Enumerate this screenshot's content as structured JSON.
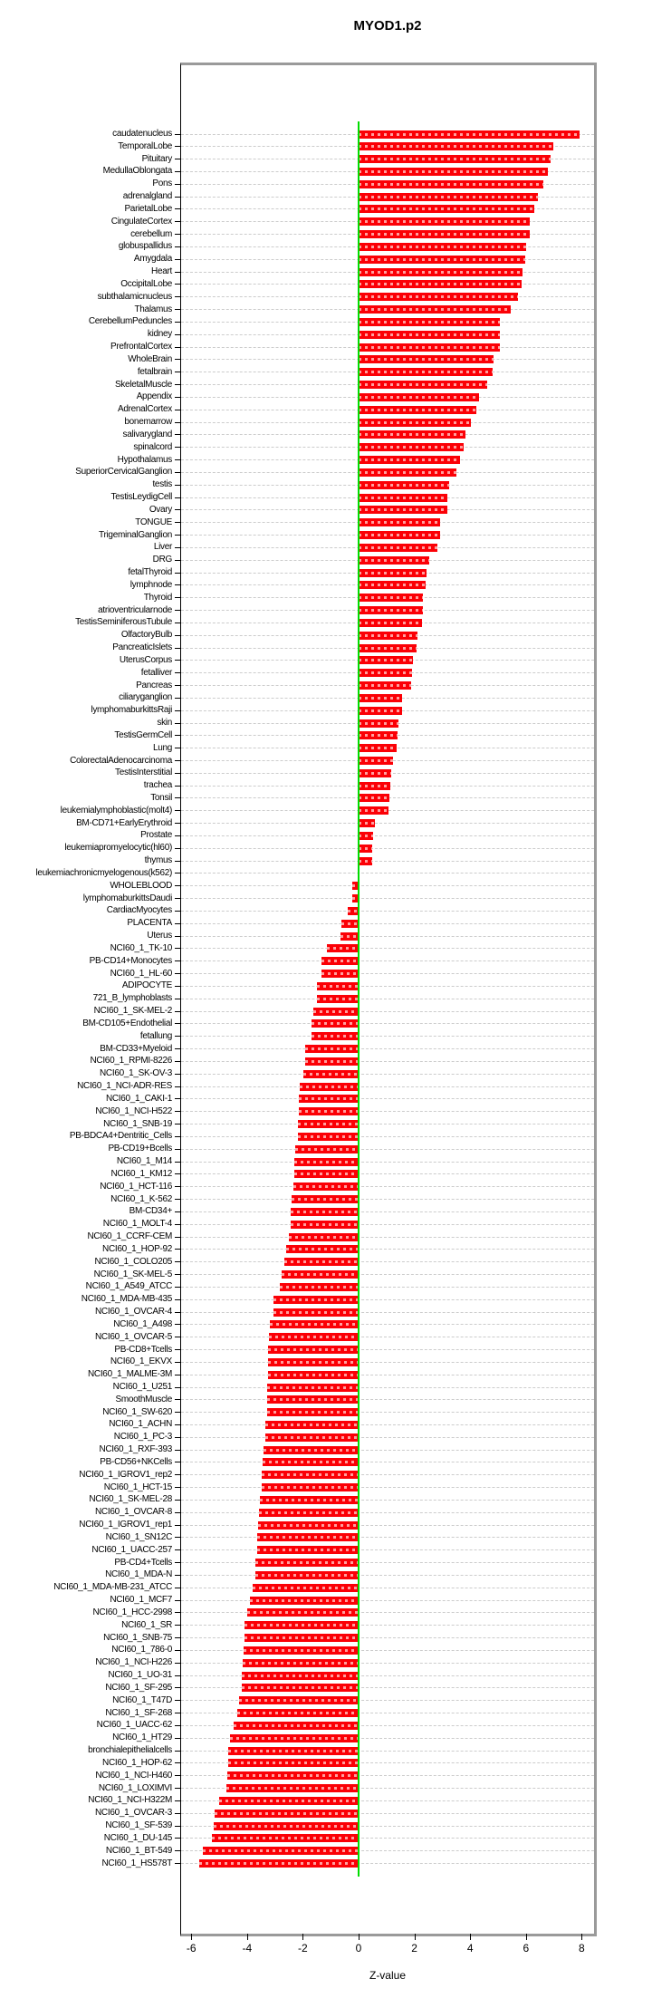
{
  "title": "MYOD1.p2",
  "x_axis": {
    "label": "Z-value",
    "ticks": [
      -6,
      -4,
      -2,
      0,
      2,
      4,
      6,
      8
    ]
  },
  "chart_data": {
    "type": "bar",
    "orientation": "horizontal",
    "title": "MYOD1.p2",
    "xlabel": "Z-value",
    "xlim": [
      -6.4,
      8.4
    ],
    "x_ticks": [
      -6,
      -4,
      -2,
      0,
      2,
      4,
      6,
      8
    ],
    "grid": "dashed-horizontal-per-category",
    "legend": "none",
    "bar_color": "#fb0006",
    "zero_line_color": "#00dd00",
    "categories": [
      "caudatenucleus",
      "TemporalLobe",
      "Pituitary",
      "MedullaOblongata",
      "Pons",
      "adrenalgland",
      "ParietalLobe",
      "CingulateCortex",
      "cerebellum",
      "globuspallidus",
      "Amygdala",
      "Heart",
      "OccipitalLobe",
      "subthalamicnucleus",
      "Thalamus",
      "CerebellumPeduncles",
      "kidney",
      "PrefrontalCortex",
      "WholeBrain",
      "fetalbrain",
      "SkeletalMuscle",
      "Appendix",
      "AdrenalCortex",
      "bonemarrow",
      "salivarygland",
      "spinalcord",
      "Hypothalamus",
      "SuperiorCervicalGanglion",
      "testis",
      "TestisLeydigCell",
      "Ovary",
      "TONGUE",
      "TrigeminalGanglion",
      "Liver",
      "DRG",
      "fetalThyroid",
      "lymphnode",
      "Thyroid",
      "atrioventricularnode",
      "TestisSeminiferousTubule",
      "OlfactoryBulb",
      "PancreaticIslets",
      "UterusCorpus",
      "fetalliver",
      "Pancreas",
      "ciliaryganglion",
      "lymphomaburkittsRaji",
      "skin",
      "TestisGermCell",
      "Lung",
      "ColorectalAdenocarcinoma",
      "TestisInterstitial",
      "trachea",
      "Tonsil",
      "leukemialymphoblastic(molt4)",
      "BM-CD71+EarlyErythroid",
      "Prostate",
      "leukemiapromyelocytic(hl60)",
      "thymus",
      "leukemiachronicmyelogenous(k562)",
      "WHOLEBLOOD",
      "lymphomaburkittsDaudi",
      "CardiacMyocytes",
      "PLACENTA",
      "Uterus",
      "NCI60_1_TK-10",
      "PB-CD14+Monocytes",
      "NCI60_1_HL-60",
      "ADIPOCYTE",
      "721_B_lymphoblasts",
      "NCI60_1_SK-MEL-2",
      "BM-CD105+Endothelial",
      "fetallung",
      "BM-CD33+Myeloid",
      "NCI60_1_RPMI-8226",
      "NCI60_1_SK-OV-3",
      "NCI60_1_NCI-ADR-RES",
      "NCI60_1_CAKI-1",
      "NCI60_1_NCI-H522",
      "NCI60_1_SNB-19",
      "PB-BDCA4+Dentritic_Cells",
      "PB-CD19+Bcells",
      "NCI60_1_M14",
      "NCI60_1_KM12",
      "NCI60_1_HCT-116",
      "NCI60_1_K-562",
      "BM-CD34+",
      "NCI60_1_MOLT-4",
      "NCI60_1_CCRF-CEM",
      "NCI60_1_HOP-92",
      "NCI60_1_COLO205",
      "NCI60_1_SK-MEL-5",
      "NCI60_1_A549_ATCC",
      "NCI60_1_MDA-MB-435",
      "NCI60_1_OVCAR-4",
      "NCI60_1_A498",
      "NCI60_1_OVCAR-5",
      "PB-CD8+Tcells",
      "NCI60_1_EKVX",
      "NCI60_1_MALME-3M",
      "NCI60_1_U251",
      "SmoothMuscle",
      "NCI60_1_SW-620",
      "NCI60_1_ACHN",
      "NCI60_1_PC-3",
      "NCI60_1_RXF-393",
      "PB-CD56+NKCells",
      "NCI60_1_IGROV1_rep2",
      "NCI60_1_HCT-15",
      "NCI60_1_SK-MEL-28",
      "NCI60_1_OVCAR-8",
      "NCI60_1_IGROV1_rep1",
      "NCI60_1_SN12C",
      "NCI60_1_UACC-257",
      "PB-CD4+Tcells",
      "NCI60_1_MDA-N",
      "NCI60_1_MDA-MB-231_ATCC",
      "NCI60_1_MCF7",
      "NCI60_1_HCC-2998",
      "NCI60_1_SR",
      "NCI60_1_SNB-75",
      "NCI60_1_786-0",
      "NCI60_1_NCI-H226",
      "NCI60_1_UO-31",
      "NCI60_1_SF-295",
      "NCI60_1_T47D",
      "NCI60_1_SF-268",
      "NCI60_1_UACC-62",
      "NCI60_1_HT29",
      "bronchialepithelialcells",
      "NCI60_1_HOP-62",
      "NCI60_1_NCI-H460",
      "NCI60_1_LOXIMVI",
      "NCI60_1_NCI-H322M",
      "NCI60_1_OVCAR-3",
      "NCI60_1_SF-539",
      "NCI60_1_DU-145",
      "NCI60_1_BT-549",
      "NCI60_1_HS578T"
    ],
    "values": [
      7.92,
      6.99,
      6.88,
      6.79,
      6.62,
      6.44,
      6.31,
      6.15,
      6.14,
      6.0,
      5.99,
      5.88,
      5.85,
      5.7,
      5.46,
      5.08,
      5.06,
      5.05,
      4.83,
      4.81,
      4.61,
      4.31,
      4.22,
      4.04,
      3.83,
      3.75,
      3.65,
      3.51,
      3.24,
      3.19,
      3.17,
      2.92,
      2.91,
      2.83,
      2.53,
      2.45,
      2.41,
      2.32,
      2.3,
      2.27,
      2.12,
      2.07,
      1.94,
      1.9,
      1.88,
      1.56,
      1.55,
      1.43,
      1.41,
      1.36,
      1.23,
      1.18,
      1.14,
      1.1,
      1.08,
      0.59,
      0.52,
      0.5,
      0.49,
      0.03,
      -0.22,
      -0.24,
      -0.39,
      -0.61,
      -0.64,
      -1.14,
      -1.32,
      -1.34,
      -1.49,
      -1.5,
      -1.61,
      -1.68,
      -1.7,
      -1.9,
      -1.93,
      -1.99,
      -2.11,
      -2.13,
      -2.14,
      -2.16,
      -2.18,
      -2.26,
      -2.29,
      -2.32,
      -2.34,
      -2.41,
      -2.43,
      -2.44,
      -2.5,
      -2.61,
      -2.67,
      -2.76,
      -2.81,
      -3.05,
      -3.06,
      -3.17,
      -3.21,
      -3.24,
      -3.25,
      -3.26,
      -3.27,
      -3.28,
      -3.29,
      -3.33,
      -3.34,
      -3.4,
      -3.43,
      -3.47,
      -3.49,
      -3.55,
      -3.56,
      -3.59,
      -3.64,
      -3.65,
      -3.7,
      -3.71,
      -3.79,
      -3.9,
      -4.0,
      -4.08,
      -4.09,
      -4.11,
      -4.17,
      -4.18,
      -4.19,
      -4.27,
      -4.35,
      -4.47,
      -4.62,
      -4.68,
      -4.69,
      -4.72,
      -4.74,
      -5.01,
      -5.15,
      -5.21,
      -5.27,
      -5.6,
      -5.71
    ]
  }
}
